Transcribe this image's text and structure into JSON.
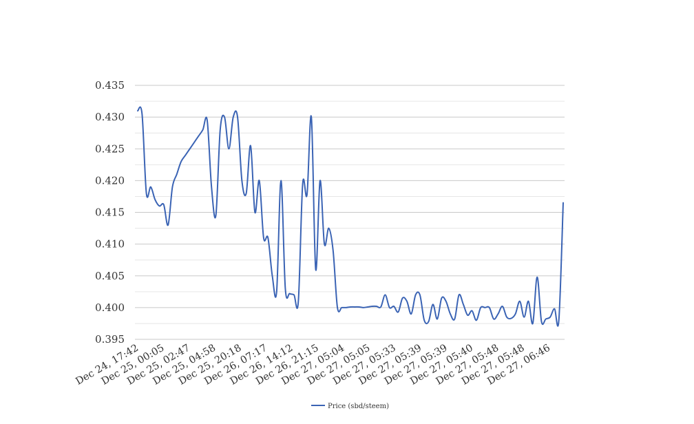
{
  "chart_data": {
    "type": "line",
    "title": "",
    "xlabel": "",
    "ylabel": "",
    "ylim": [
      0.395,
      0.435
    ],
    "y_ticks": [
      "0.395",
      "0.400",
      "0.405",
      "0.410",
      "0.415",
      "0.420",
      "0.425",
      "0.430",
      "0.435"
    ],
    "grid": true,
    "legend_position": "bottom-center",
    "colors": {
      "series": "#3a63b4",
      "grid_major": "#c8c8c8",
      "grid_minor": "#e6e6e6"
    },
    "x_tick_labels": [
      "Dec 24, 17:42",
      "Dec 25, 00:05",
      "Dec 25, 02:47",
      "Dec 25, 04:58",
      "Dec 25, 20:18",
      "Dec 26, 07:17",
      "Dec 26, 14:12",
      "Dec 26, 21:15",
      "Dec 27, 05:04",
      "Dec 27, 05:05",
      "Dec 27, 05:33",
      "Dec 27, 05:39",
      "Dec 27, 05:39",
      "Dec 27, 05:40",
      "Dec 27, 05:48",
      "Dec 27, 05:48",
      "Dec 27, 06:46"
    ],
    "series": [
      {
        "name": "Price (sbd/steem)",
        "values": [
          0.431,
          0.4305,
          0.418,
          0.419,
          0.417,
          0.416,
          0.4162,
          0.413,
          0.419,
          0.421,
          0.423,
          0.424,
          0.425,
          0.426,
          0.427,
          0.428,
          0.4295,
          0.419,
          0.4145,
          0.428,
          0.43,
          0.425,
          0.43,
          0.43,
          0.42,
          0.418,
          0.4255,
          0.415,
          0.42,
          0.411,
          0.411,
          0.405,
          0.4025,
          0.42,
          0.403,
          0.4022,
          0.402,
          0.401,
          0.4195,
          0.4178,
          0.43,
          0.406,
          0.42,
          0.41,
          0.4125,
          0.409,
          0.4,
          0.4,
          0.4,
          0.4001,
          0.4001,
          0.4001,
          0.4,
          0.4001,
          0.4002,
          0.4002,
          0.4001,
          0.402,
          0.4,
          0.4002,
          0.3993,
          0.4015,
          0.401,
          0.399,
          0.402,
          0.402,
          0.398,
          0.3978,
          0.4005,
          0.3982,
          0.4015,
          0.401,
          0.399,
          0.3982,
          0.402,
          0.4005,
          0.3988,
          0.3995,
          0.398,
          0.4,
          0.4,
          0.4,
          0.3982,
          0.399,
          0.4002,
          0.3985,
          0.3983,
          0.399,
          0.401,
          0.3985,
          0.401,
          0.3975,
          0.4048,
          0.3978,
          0.3982,
          0.3985,
          0.3998,
          0.398,
          0.4165
        ]
      }
    ]
  }
}
